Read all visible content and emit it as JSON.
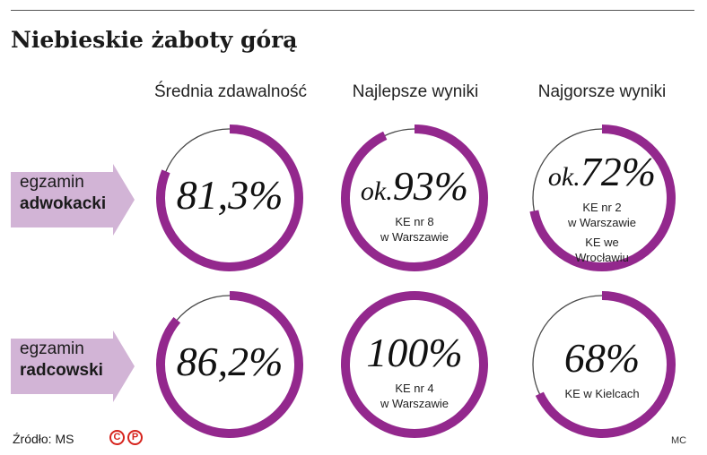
{
  "title": "Niebieskie żaboty górą",
  "columns": [
    "Średnia zdawalność",
    "Najlepsze wyniki",
    "Najgorsze wyniki"
  ],
  "rows": [
    {
      "line1": "egzamin",
      "line2": "adwokacki"
    },
    {
      "line1": "egzamin",
      "line2": "radcowski"
    }
  ],
  "colors": {
    "ring": "#93288d",
    "track": "#4a4a4a",
    "arrow": "#d2b4d6"
  },
  "cells": [
    [
      {
        "prefix": "",
        "value_text": "81,3%",
        "sub": []
      },
      {
        "prefix": "ok.",
        "value_text": "93%",
        "sub": [
          "KE nr 8",
          "w Warszawie"
        ]
      },
      {
        "prefix": "ok.",
        "value_text": "72%",
        "sub": [
          "KE nr 2",
          "w Warszawie",
          "KE we",
          "Wrocławiu"
        ]
      }
    ],
    [
      {
        "prefix": "",
        "value_text": "86,2%",
        "sub": []
      },
      {
        "prefix": "",
        "value_text": "100%",
        "sub": [
          "KE nr 4",
          "w Warszawie"
        ]
      },
      {
        "prefix": "",
        "value_text": "68%",
        "sub": [
          "KE w Kielcach"
        ]
      }
    ]
  ],
  "chart_data": {
    "type": "pie",
    "categories": [
      "Średnia zdawalność",
      "Najlepsze wyniki",
      "Najgorsze wyniki"
    ],
    "series": [
      {
        "name": "egzamin adwokacki",
        "values": [
          81.3,
          93,
          72
        ]
      },
      {
        "name": "egzamin radcowski",
        "values": [
          86.2,
          100,
          68
        ]
      }
    ],
    "title": "Niebieskie żaboty górą"
  },
  "footer": {
    "source": "Źródło: MS",
    "badge1": "C",
    "badge2": "P",
    "credit": "MC"
  }
}
